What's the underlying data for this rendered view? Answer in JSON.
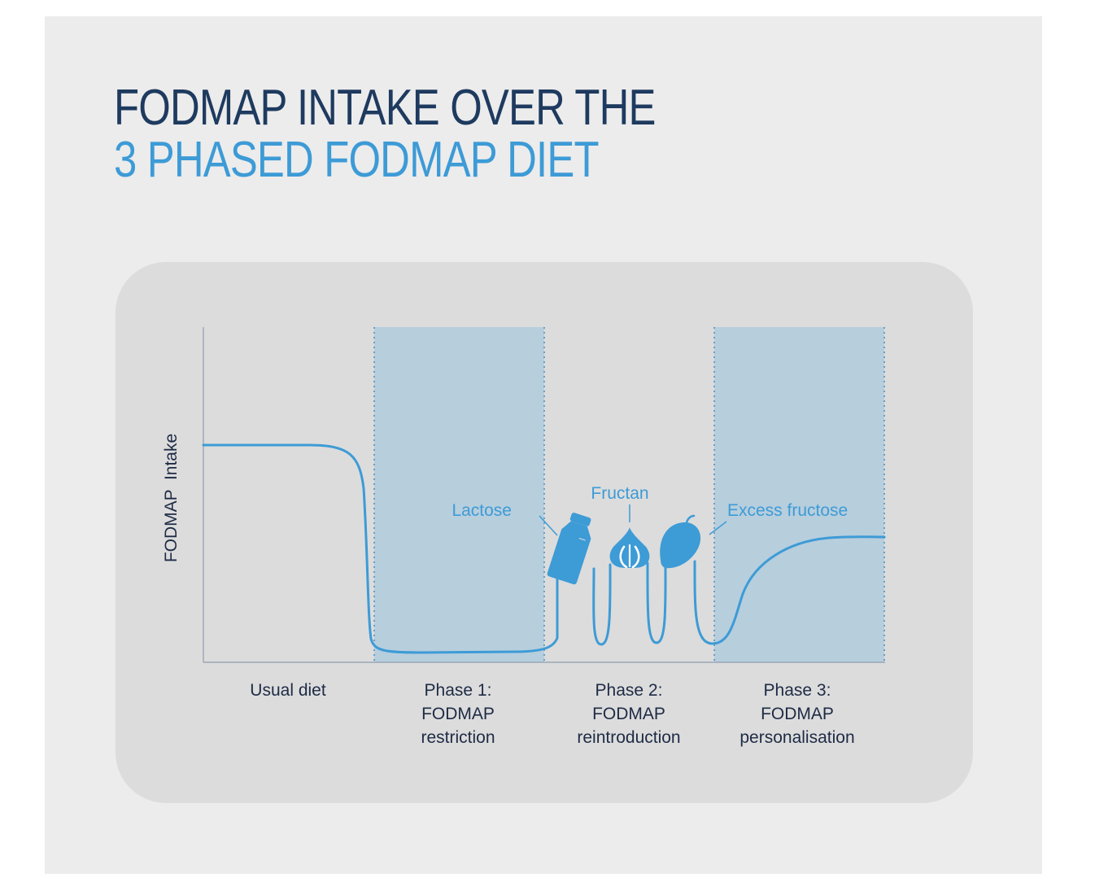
{
  "title": {
    "line1": "FODMAP INTAKE OVER THE",
    "line2": "3 PHASED FODMAP DIET"
  },
  "y_axis_label": "FODMAP  Intake",
  "phases": [
    {
      "lines": [
        "Usual diet"
      ]
    },
    {
      "lines": [
        "Phase 1:",
        "FODMAP",
        "restriction"
      ]
    },
    {
      "lines": [
        "Phase 2:",
        "FODMAP",
        "reintroduction"
      ]
    },
    {
      "lines": [
        "Phase 3:",
        "FODMAP",
        "personalisation"
      ]
    }
  ],
  "annotations": {
    "lactose": "Lactose",
    "fructan": "Fructan",
    "fructose": "Excess fructose"
  },
  "icons": [
    "milk-bottle-icon",
    "garlic-icon",
    "mango-icon"
  ],
  "colors": {
    "title_dark": "#1e3a5f",
    "accent_blue": "#3d9bd6",
    "shaded_phase": "#b7cedd",
    "panel": "#dcdcdc",
    "background": "#ececec"
  }
}
